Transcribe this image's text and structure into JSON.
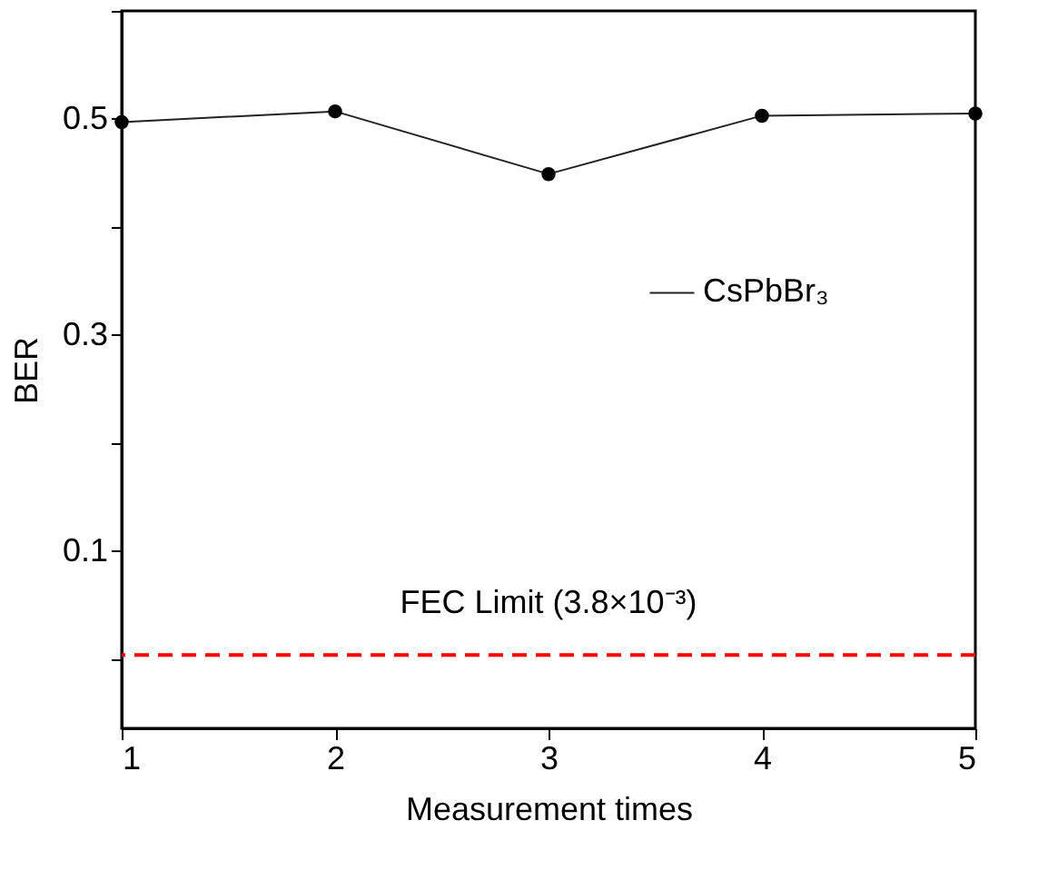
{
  "chart_data": {
    "type": "line",
    "xlabel": "Measurement times",
    "ylabel": "BER",
    "x": [
      1,
      2,
      3,
      4,
      5
    ],
    "series": [
      {
        "name": "CsPbBr₃",
        "color": "#222222",
        "values": [
          0.497,
          0.507,
          0.449,
          0.503,
          0.505
        ]
      }
    ],
    "xlim": [
      1,
      5
    ],
    "xticks": [
      1,
      2,
      3,
      4,
      5
    ],
    "ylim": [
      -0.064,
      0.6
    ],
    "yticks": [
      {
        "value": 0.0,
        "label": null
      },
      0.1,
      {
        "value": 0.2,
        "label": null
      },
      0.3,
      {
        "value": 0.4,
        "label": null
      },
      0.5,
      {
        "value": 0.6,
        "label": null
      }
    ],
    "ref_lines": [
      {
        "axis": "y",
        "value": 0.0038,
        "label": "FEC Limit (3.8×10⁻³)",
        "color": "#ff0000",
        "line_style": "dashed"
      }
    ],
    "legend": "right",
    "marker": "circle",
    "line_style": "solid",
    "grid": false
  }
}
